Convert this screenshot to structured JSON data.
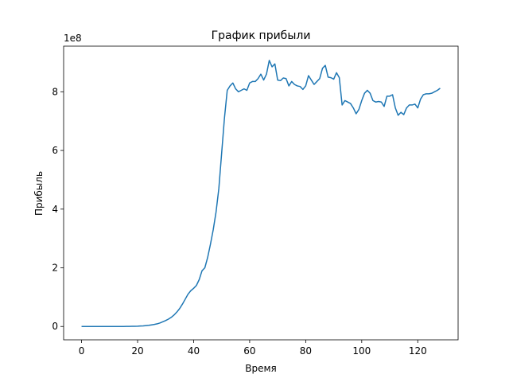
{
  "chart_data": {
    "type": "line",
    "title": "График прибыли",
    "x_label": "Время",
    "y_label": "Прибыль",
    "y_offset_label": "1e8",
    "color": "#1f77b4",
    "x": [
      0,
      1,
      2,
      3,
      4,
      5,
      6,
      7,
      8,
      9,
      10,
      11,
      12,
      13,
      14,
      15,
      16,
      17,
      18,
      19,
      20,
      21,
      22,
      23,
      24,
      25,
      26,
      27,
      28,
      29,
      30,
      31,
      32,
      33,
      34,
      35,
      36,
      37,
      38,
      39,
      40,
      41,
      42,
      43,
      44,
      45,
      46,
      47,
      48,
      49,
      50,
      51,
      52,
      53,
      54,
      55,
      56,
      57,
      58,
      59,
      60,
      61,
      62,
      63,
      64,
      65,
      66,
      67,
      68,
      69,
      70,
      71,
      72,
      73,
      74,
      75,
      76,
      77,
      78,
      79,
      80,
      81,
      82,
      83,
      84,
      85,
      86,
      87,
      88,
      89,
      90,
      91,
      92,
      93,
      94,
      95,
      96,
      97,
      98,
      99,
      100,
      101,
      102,
      103,
      104,
      105,
      106,
      107,
      108,
      109,
      110,
      111,
      112,
      113,
      114,
      115,
      116,
      117,
      118,
      119,
      120,
      121,
      122,
      123,
      124,
      125,
      126,
      127,
      128
    ],
    "values": [
      0,
      0,
      0,
      0,
      0,
      0,
      0,
      0,
      0,
      0,
      0,
      0,
      0,
      0,
      0,
      0.001,
      0.002,
      0.003,
      0.005,
      0.007,
      0.01,
      0.015,
      0.02,
      0.03,
      0.04,
      0.055,
      0.07,
      0.09,
      0.12,
      0.16,
      0.2,
      0.25,
      0.31,
      0.39,
      0.49,
      0.61,
      0.76,
      0.93,
      1.1,
      1.22,
      1.3,
      1.4,
      1.6,
      1.9,
      2.0,
      2.35,
      2.8,
      3.3,
      3.9,
      4.7,
      5.9,
      7.1,
      8.05,
      8.2,
      8.3,
      8.1,
      8.0,
      8.05,
      8.1,
      8.05,
      8.3,
      8.35,
      8.35,
      8.45,
      8.6,
      8.4,
      8.6,
      9.07,
      8.85,
      8.95,
      8.4,
      8.38,
      8.47,
      8.45,
      8.2,
      8.35,
      8.25,
      8.2,
      8.18,
      8.08,
      8.2,
      8.55,
      8.4,
      8.25,
      8.35,
      8.45,
      8.8,
      8.9,
      8.5,
      8.48,
      8.43,
      8.65,
      8.48,
      7.55,
      7.7,
      7.65,
      7.6,
      7.45,
      7.25,
      7.4,
      7.7,
      7.95,
      8.05,
      7.95,
      7.7,
      7.65,
      7.67,
      7.65,
      7.5,
      7.85,
      7.85,
      7.9,
      7.45,
      7.2,
      7.3,
      7.22,
      7.45,
      7.55,
      7.55,
      7.58,
      7.45,
      7.75,
      7.9,
      7.93,
      7.93,
      7.95,
      8.0,
      8.05,
      8.12
    ],
    "xlim": [
      -6.4,
      134.4
    ],
    "ylim": [
      -0.455,
      9.555
    ],
    "xticks": [
      0,
      20,
      40,
      60,
      80,
      100,
      120
    ],
    "yticks": [
      0,
      2,
      4,
      6,
      8
    ]
  }
}
